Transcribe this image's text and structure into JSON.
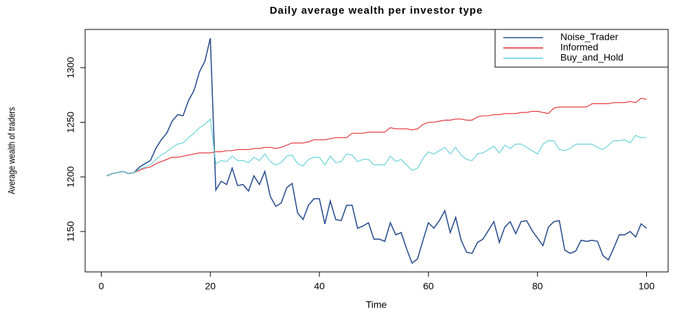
{
  "chart_data": {
    "type": "line",
    "title": "Daily average wealth per investor type",
    "xlabel": "Time",
    "ylabel": "Average wealth of traders",
    "x": [
      1,
      2,
      3,
      4,
      5,
      6,
      7,
      8,
      9,
      10,
      11,
      12,
      13,
      14,
      15,
      16,
      17,
      18,
      19,
      20,
      21,
      22,
      23,
      24,
      25,
      26,
      27,
      28,
      29,
      30,
      31,
      32,
      33,
      34,
      35,
      36,
      37,
      38,
      39,
      40,
      41,
      42,
      43,
      44,
      45,
      46,
      47,
      48,
      49,
      50,
      51,
      52,
      53,
      54,
      55,
      56,
      57,
      58,
      59,
      60,
      61,
      62,
      63,
      64,
      65,
      66,
      67,
      68,
      69,
      70,
      71,
      72,
      73,
      74,
      75,
      76,
      77,
      78,
      79,
      80,
      81,
      82,
      83,
      84,
      85,
      86,
      87,
      88,
      89,
      90,
      91,
      92,
      93,
      94,
      95,
      96,
      97,
      98,
      99,
      100
    ],
    "series": [
      {
        "name": "Noise_Trader",
        "color": "#2b4f8f",
        "values": [
          1201,
          1203,
          1204,
          1205,
          1203,
          1204,
          1209,
          1212,
          1215,
          1226,
          1234,
          1240,
          1251,
          1257,
          1256,
          1270,
          1279,
          1296,
          1306,
          1327,
          1188,
          1196,
          1193,
          1208,
          1192,
          1193,
          1187,
          1201,
          1193,
          1205,
          1182,
          1173,
          1176,
          1190,
          1194,
          1167,
          1161,
          1174,
          1180,
          1180,
          1157,
          1178,
          1161,
          1160,
          1174,
          1174,
          1153,
          1155,
          1158,
          1143,
          1143,
          1141,
          1158,
          1147,
          1149,
          1134,
          1121,
          1125,
          1142,
          1158,
          1153,
          1160,
          1169,
          1149,
          1163,
          1142,
          1131,
          1130,
          1140,
          1143,
          1151,
          1159,
          1140,
          1154,
          1159,
          1148,
          1159,
          1160,
          1151,
          1144,
          1137,
          1154,
          1159,
          1160,
          1133,
          1130,
          1132,
          1142,
          1141,
          1142,
          1141,
          1128,
          1124,
          1135,
          1147,
          1147,
          1150,
          1145,
          1157,
          1153
        ]
      },
      {
        "name": "Informed",
        "color": "#e3262b",
        "values": [
          1201,
          1203,
          1204,
          1205,
          1203,
          1204,
          1206,
          1208,
          1209,
          1212,
          1214,
          1216,
          1218,
          1218,
          1219,
          1220,
          1221,
          1222,
          1222,
          1222,
          1223,
          1223,
          1224,
          1224,
          1225,
          1225,
          1225,
          1226,
          1226,
          1227,
          1227,
          1226,
          1227,
          1229,
          1231,
          1231,
          1231,
          1232,
          1234,
          1234,
          1234,
          1235,
          1236,
          1236,
          1236,
          1240,
          1240,
          1240,
          1241,
          1241,
          1241,
          1241,
          1245,
          1244,
          1244,
          1244,
          1243,
          1244,
          1248,
          1250,
          1250,
          1251,
          1252,
          1252,
          1253,
          1253,
          1252,
          1252,
          1255,
          1256,
          1256,
          1257,
          1257,
          1258,
          1258,
          1258,
          1259,
          1259,
          1260,
          1260,
          1259,
          1258,
          1263,
          1264,
          1264,
          1264,
          1264,
          1264,
          1264,
          1267,
          1267,
          1267,
          1267,
          1268,
          1268,
          1268,
          1269,
          1268,
          1272,
          1271
        ]
      },
      {
        "name": "Buy_and_Hold",
        "color": "#5ccfd6",
        "values": [
          1201,
          1203,
          1204,
          1205,
          1203,
          1204,
          1207,
          1209,
          1211,
          1216,
          1220,
          1223,
          1227,
          1230,
          1231,
          1236,
          1240,
          1245,
          1248,
          1253,
          1212,
          1215,
          1214,
          1219,
          1215,
          1215,
          1213,
          1218,
          1215,
          1221,
          1214,
          1211,
          1213,
          1219,
          1220,
          1212,
          1210,
          1216,
          1218,
          1218,
          1211,
          1219,
          1213,
          1214,
          1221,
          1220,
          1214,
          1216,
          1216,
          1211,
          1211,
          1211,
          1219,
          1214,
          1216,
          1211,
          1206,
          1208,
          1217,
          1223,
          1221,
          1224,
          1227,
          1221,
          1227,
          1220,
          1216,
          1215,
          1221,
          1222,
          1225,
          1228,
          1222,
          1229,
          1226,
          1230,
          1230,
          1227,
          1224,
          1221,
          1230,
          1233,
          1233,
          1225,
          1224,
          1226,
          1230,
          1230,
          1230,
          1230,
          1227,
          1225,
          1229,
          1233,
          1233,
          1234,
          1231,
          1238,
          1236,
          1236
        ]
      }
    ],
    "xlim": [
      -2.96,
      103.96
    ],
    "xticks": [
      0,
      20,
      40,
      60,
      80,
      100
    ],
    "ylim": [
      1113,
      1335
    ],
    "yticks": [
      1150,
      1200,
      1250,
      1300
    ],
    "legend": "top-right"
  }
}
